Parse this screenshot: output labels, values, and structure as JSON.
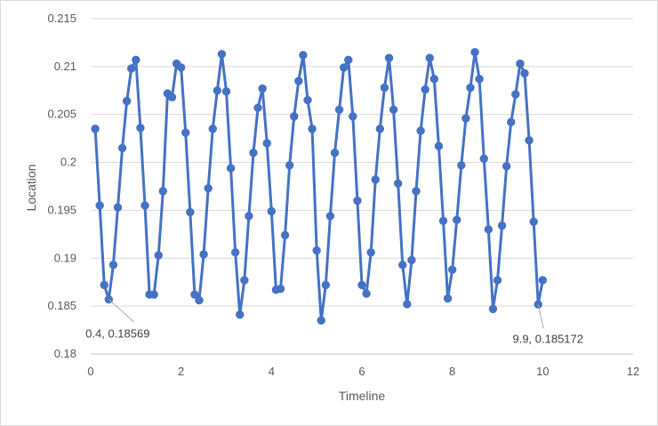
{
  "chart_data": {
    "type": "scatter",
    "title": "",
    "xlabel": "Timeline",
    "ylabel": "Location",
    "xlim": [
      0,
      12
    ],
    "ylim": [
      0.18,
      0.215
    ],
    "x_ticks": [
      "0",
      "2",
      "4",
      "6",
      "8",
      "10",
      "12"
    ],
    "y_ticks": [
      "0.18",
      "0.185",
      "0.19",
      "0.195",
      "0.2",
      "0.205",
      "0.21",
      "0.215"
    ],
    "grid": "horizontal",
    "legend": "none",
    "series_color": "#4472C4",
    "markers": true,
    "series": [
      {
        "x": [
          0.1,
          0.2,
          0.3,
          0.4,
          0.5,
          0.6,
          0.7,
          0.8,
          0.9,
          1.0,
          1.1,
          1.2,
          1.3,
          1.4,
          1.5,
          1.6,
          1.7,
          1.8,
          1.9,
          2.0,
          2.1,
          2.2,
          2.3,
          2.4,
          2.5,
          2.6,
          2.7,
          2.8,
          2.9,
          3.0,
          3.1,
          3.2,
          3.3,
          3.4,
          3.5,
          3.6,
          3.7,
          3.8,
          3.9,
          4.0,
          4.1,
          4.2,
          4.3,
          4.4,
          4.5,
          4.6,
          4.7,
          4.8,
          4.9,
          5.0,
          5.1,
          5.2,
          5.3,
          5.4,
          5.5,
          5.6,
          5.7,
          5.8,
          5.9,
          6.0,
          6.1,
          6.2,
          6.3,
          6.4,
          6.5,
          6.6,
          6.7,
          6.8,
          6.9,
          7.0,
          7.1,
          7.2,
          7.3,
          7.4,
          7.5,
          7.6,
          7.7,
          7.8,
          7.9,
          8.0,
          8.1,
          8.2,
          8.3,
          8.4,
          8.5,
          8.6,
          8.7,
          8.8,
          8.9,
          9.0,
          9.1,
          9.2,
          9.3,
          9.4,
          9.5,
          9.6,
          9.7,
          9.8,
          9.9,
          10.0
        ],
        "y": [
          0.2035,
          0.1955,
          0.1872,
          0.18569,
          0.1893,
          0.1953,
          0.2015,
          0.2064,
          0.2098,
          0.2107,
          0.2036,
          0.1955,
          0.1862,
          0.1862,
          0.1903,
          0.197,
          0.2072,
          0.2068,
          0.2103,
          0.2099,
          0.2031,
          0.1948,
          0.1862,
          0.1856,
          0.1904,
          0.1973,
          0.2035,
          0.2075,
          0.2113,
          0.2074,
          0.1994,
          0.1906,
          0.1841,
          0.1877,
          0.1944,
          0.201,
          0.2057,
          0.2077,
          0.202,
          0.1949,
          0.1867,
          0.1868,
          0.1924,
          0.1997,
          0.2048,
          0.2085,
          0.2112,
          0.2065,
          0.2035,
          0.1908,
          0.1835,
          0.1872,
          0.1944,
          0.201,
          0.2055,
          0.2099,
          0.2107,
          0.2048,
          0.196,
          0.1872,
          0.1863,
          0.1906,
          0.1982,
          0.2035,
          0.2078,
          0.2109,
          0.2055,
          0.1978,
          0.1893,
          0.1852,
          0.1898,
          0.197,
          0.2033,
          0.2076,
          0.2109,
          0.2087,
          0.2017,
          0.1939,
          0.1858,
          0.1888,
          0.194,
          0.1997,
          0.2046,
          0.2078,
          0.2115,
          0.2087,
          0.2004,
          0.193,
          0.1847,
          0.1877,
          0.1934,
          0.1996,
          0.2042,
          0.2071,
          0.2103,
          0.2093,
          0.2023,
          0.1938,
          0.185172,
          0.1877
        ]
      }
    ],
    "annotations": [
      {
        "text": "0.4, 0.18569",
        "x": 0.4,
        "y": 0.18569
      },
      {
        "text": "9.9, 0.185172",
        "x": 9.9,
        "y": 0.185172
      }
    ]
  }
}
